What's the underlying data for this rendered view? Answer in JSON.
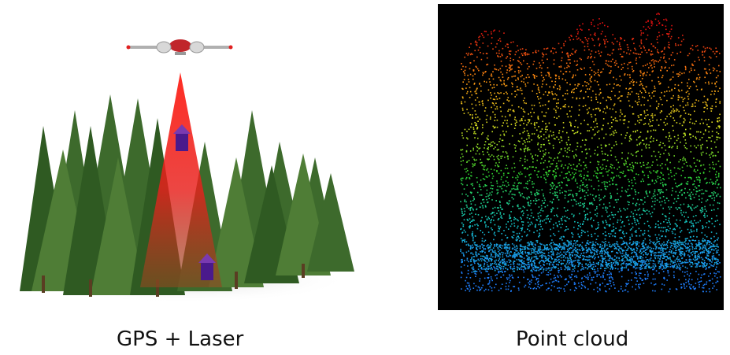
{
  "captions": {
    "left": "GPS + Laser",
    "right": "Point cloud"
  },
  "colors": {
    "laser_beam": "#e8201c",
    "tree_dark": "#2f5a22",
    "tree_light": "#4f7d36",
    "marker": "#4a1a8c",
    "point_cloud_background": "#000000",
    "point_cloud_gradient": [
      "#1e7fff",
      "#14c8c8",
      "#2ed02e",
      "#d8e020",
      "#ff8c10",
      "#e01010"
    ]
  },
  "icons": {
    "aircraft": "aircraft-icon",
    "position_marker": "position-marker-icon"
  }
}
